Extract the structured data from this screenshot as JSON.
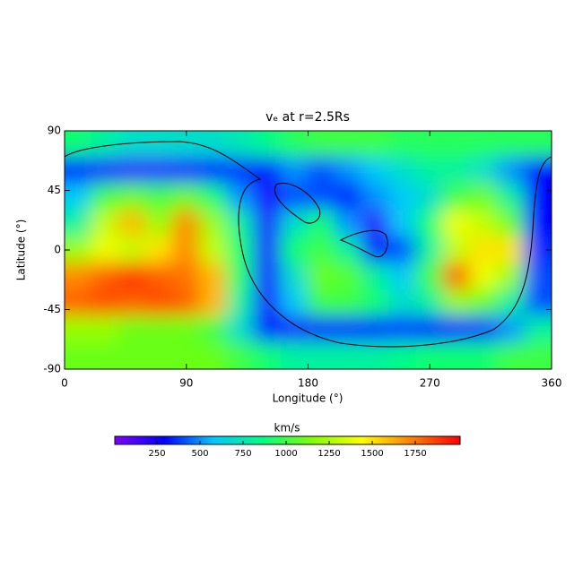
{
  "chart_data": {
    "type": "heatmap",
    "title": "vₑ at r=2.5Rs",
    "xlabel": "Longitude (°)",
    "ylabel": "Latitude (°)",
    "x": [
      10,
      30,
      50,
      70,
      90,
      110,
      130,
      150,
      170,
      190,
      210,
      230,
      250,
      270,
      290,
      310,
      330,
      350
    ],
    "y": [
      80,
      60,
      40,
      20,
      0,
      -20,
      -40,
      -60,
      -80
    ],
    "z": [
      [
        900,
        800,
        700,
        700,
        700,
        700,
        750,
        850,
        950,
        1000,
        1000,
        1000,
        950,
        950,
        950,
        950,
        950,
        950
      ],
      [
        300,
        250,
        200,
        200,
        250,
        300,
        350,
        300,
        500,
        400,
        500,
        600,
        700,
        800,
        800,
        700,
        500,
        300
      ],
      [
        600,
        1000,
        1100,
        1000,
        1100,
        900,
        500,
        250,
        400,
        400,
        300,
        500,
        600,
        700,
        1000,
        1100,
        800,
        300
      ],
      [
        800,
        1300,
        1600,
        1200,
        1700,
        1200,
        800,
        250,
        700,
        900,
        500,
        200,
        600,
        900,
        1400,
        1300,
        1100,
        300
      ],
      [
        1200,
        1400,
        1300,
        1500,
        1700,
        1300,
        900,
        250,
        900,
        1000,
        800,
        300,
        400,
        800,
        1300,
        1500,
        1500,
        350
      ],
      [
        1700,
        1800,
        1900,
        1800,
        1750,
        1600,
        900,
        250,
        700,
        1100,
        1050,
        800,
        600,
        1000,
        1800,
        1400,
        1200,
        400
      ],
      [
        1800,
        1850,
        1800,
        1850,
        1800,
        1600,
        800,
        250,
        600,
        1000,
        1000,
        900,
        700,
        800,
        1200,
        1100,
        800,
        400
      ],
      [
        1200,
        1200,
        1100,
        1100,
        1100,
        1000,
        700,
        300,
        250,
        300,
        300,
        300,
        350,
        300,
        300,
        350,
        500,
        800
      ],
      [
        1100,
        1100,
        1100,
        1100,
        1100,
        1100,
        1000,
        900,
        800,
        800,
        800,
        800,
        850,
        900,
        900,
        900,
        1000,
        1000
      ]
    ],
    "xlim": [
      0,
      360
    ],
    "ylim": [
      -90,
      90
    ],
    "xticks": [
      0,
      90,
      180,
      270,
      360
    ],
    "yticks": [
      -90,
      -45,
      0,
      45,
      90
    ],
    "colorbar": {
      "label": "km/s",
      "clim": [
        5,
        2010
      ],
      "ticks": [
        250,
        500,
        750,
        1000,
        1250,
        1500,
        1750
      ],
      "colormap": [
        "#7f00ff",
        "#0000ff",
        "#00c8ff",
        "#00ff80",
        "#80ff00",
        "#ffff00",
        "#ff8000",
        "#ff0000"
      ]
    }
  }
}
